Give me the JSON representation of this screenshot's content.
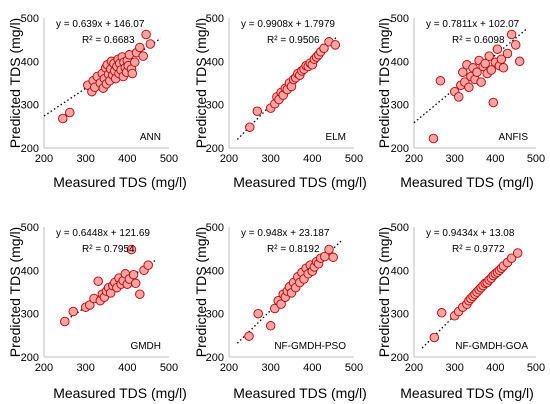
{
  "chart_data": [
    {
      "type": "scatter",
      "model": "ANN",
      "equation": "y = 0.639x + 146.07",
      "r2": "R² = 0.6683",
      "xlabel": "Measured TDS (mg/l)",
      "ylabel": "Predicted TDS (mg/l)",
      "xlim": [
        200,
        500
      ],
      "ylim": [
        200,
        500
      ],
      "xticks": [
        "200",
        "300",
        "400",
        "500"
      ],
      "yticks": [
        "200",
        "300",
        "400",
        "500"
      ],
      "trend": {
        "slope": 0.639,
        "intercept": 146.07,
        "x": [
          200,
          480
        ],
        "style": "dotted"
      },
      "x": [
        245,
        262,
        305,
        315,
        318,
        322,
        328,
        335,
        340,
        342,
        345,
        348,
        350,
        352,
        355,
        358,
        360,
        362,
        365,
        368,
        370,
        372,
        375,
        378,
        380,
        382,
        385,
        388,
        390,
        392,
        395,
        398,
        400,
        402,
        405,
        410,
        412,
        418,
        422,
        430,
        438,
        445,
        455
      ],
      "y": [
        268,
        282,
        345,
        330,
        355,
        340,
        365,
        350,
        372,
        338,
        360,
        385,
        348,
        392,
        370,
        355,
        382,
        400,
        368,
        395,
        378,
        360,
        388,
        405,
        372,
        395,
        380,
        410,
        365,
        398,
        385,
        375,
        402,
        390,
        415,
        382,
        372,
        398,
        420,
        432,
        412,
        462,
        440
      ]
    },
    {
      "type": "scatter",
      "model": "ELM",
      "equation": "y = 0.9908x + 1.7979",
      "r2": "R² = 0.9506",
      "xlabel": "",
      "ylabel": "",
      "xlim": [
        200,
        500
      ],
      "ylim": [
        200,
        500
      ],
      "xticks": [
        "200",
        "300",
        "400",
        "500"
      ],
      "yticks": [
        "200",
        "300",
        "400",
        "500"
      ],
      "trend": {
        "slope": 0.9908,
        "intercept": 1.7979,
        "x": [
          220,
          460
        ],
        "style": "dotted"
      },
      "x": [
        250,
        268,
        300,
        310,
        315,
        320,
        325,
        330,
        335,
        340,
        345,
        350,
        355,
        360,
        365,
        370,
        375,
        380,
        385,
        390,
        395,
        400,
        405,
        410,
        415,
        420,
        428,
        440,
        455
      ],
      "y": [
        248,
        285,
        292,
        302,
        318,
        312,
        328,
        322,
        338,
        335,
        350,
        342,
        358,
        362,
        372,
        368,
        378,
        382,
        390,
        388,
        396,
        392,
        405,
        410,
        415,
        422,
        430,
        445,
        438
      ]
    },
    {
      "type": "scatter",
      "model": "ANFIS",
      "equation": "y = 0.7811x + 102.07",
      "r2": "R² = 0.6098",
      "xlabel": "",
      "ylabel": "",
      "xlim": [
        200,
        500
      ],
      "ylim": [
        200,
        500
      ],
      "xticks": [
        "200",
        "300",
        "400",
        "500"
      ],
      "yticks": [
        "200",
        "300",
        "400",
        "500"
      ],
      "trend": {
        "slope": 0.7811,
        "intercept": 102.07,
        "x": [
          200,
          480
        ],
        "style": "dotted"
      },
      "x": [
        248,
        265,
        300,
        310,
        315,
        320,
        325,
        330,
        335,
        340,
        345,
        350,
        355,
        360,
        365,
        370,
        375,
        380,
        385,
        390,
        395,
        400,
        405,
        410,
        415,
        420,
        430,
        440,
        450,
        460
      ],
      "y": [
        222,
        355,
        330,
        318,
        345,
        375,
        352,
        392,
        340,
        365,
        385,
        358,
        375,
        402,
        352,
        388,
        395,
        372,
        412,
        380,
        305,
        398,
        428,
        390,
        405,
        385,
        418,
        462,
        438,
        400
      ]
    },
    {
      "type": "scatter",
      "model": "GMDH",
      "equation": "y = 0.6448x + 121.69",
      "r2": "R² = 0.7954",
      "xlabel": "",
      "ylabel": "",
      "xlim": [
        200,
        500
      ],
      "ylim": [
        200,
        500
      ],
      "xticks": [
        "200",
        "300",
        "400",
        "500"
      ],
      "yticks": [
        "200",
        "300",
        "400",
        "500"
      ],
      "trend": {
        "slope": 0.6448,
        "intercept": 121.69,
        "x": [
          240,
          470
        ],
        "style": "dotted"
      },
      "x": [
        250,
        270,
        300,
        310,
        320,
        330,
        335,
        340,
        345,
        350,
        355,
        360,
        365,
        370,
        375,
        380,
        385,
        390,
        395,
        400,
        405,
        410,
        415,
        420,
        430,
        440,
        450
      ],
      "y": [
        282,
        305,
        315,
        320,
        335,
        375,
        330,
        345,
        338,
        352,
        360,
        348,
        365,
        372,
        360,
        382,
        368,
        376,
        392,
        368,
        380,
        448,
        390,
        370,
        345,
        400,
        412
      ]
    },
    {
      "type": "scatter",
      "model": "NF-GMDH-PSO",
      "equation": "y = 0.948x + 23.187",
      "r2": "R² = 0.8192",
      "xlabel": "",
      "ylabel": "",
      "xlim": [
        200,
        500
      ],
      "ylim": [
        200,
        500
      ],
      "xticks": [
        "200",
        "300",
        "400",
        "500"
      ],
      "yticks": [
        "200",
        "300",
        "400",
        "500"
      ],
      "trend": {
        "slope": 0.948,
        "intercept": 23.187,
        "x": [
          220,
          470
        ],
        "style": "dotted"
      },
      "x": [
        248,
        270,
        300,
        310,
        318,
        325,
        330,
        335,
        340,
        345,
        350,
        355,
        360,
        365,
        370,
        375,
        380,
        385,
        390,
        395,
        400,
        405,
        410,
        415,
        420,
        430,
        440,
        450
      ],
      "y": [
        248,
        300,
        272,
        312,
        330,
        322,
        345,
        338,
        352,
        362,
        348,
        372,
        360,
        385,
        372,
        395,
        380,
        405,
        392,
        412,
        398,
        408,
        420,
        415,
        428,
        432,
        448,
        430
      ]
    },
    {
      "type": "scatter",
      "model": "NF-GMDH-GOA",
      "equation": "y = 0.9434x + 13.08",
      "r2": "R² = 0.9772",
      "xlabel": "",
      "ylabel": "",
      "xlim": [
        200,
        500
      ],
      "ylim": [
        200,
        500
      ],
      "xticks": [
        "200",
        "300",
        "400",
        "500"
      ],
      "yticks": [
        "200",
        "300",
        "400",
        "500"
      ],
      "trend": {
        "slope": 0.9434,
        "intercept": 13.08,
        "x": [
          220,
          460
        ],
        "style": "dotted"
      },
      "x": [
        250,
        268,
        300,
        310,
        320,
        330,
        335,
        340,
        345,
        350,
        355,
        360,
        365,
        370,
        375,
        380,
        385,
        390,
        395,
        400,
        405,
        410,
        415,
        420,
        430,
        440,
        455
      ],
      "y": [
        245,
        302,
        295,
        305,
        315,
        322,
        330,
        335,
        340,
        345,
        350,
        355,
        360,
        365,
        370,
        372,
        378,
        382,
        388,
        392,
        396,
        400,
        405,
        410,
        418,
        428,
        440
      ]
    }
  ]
}
